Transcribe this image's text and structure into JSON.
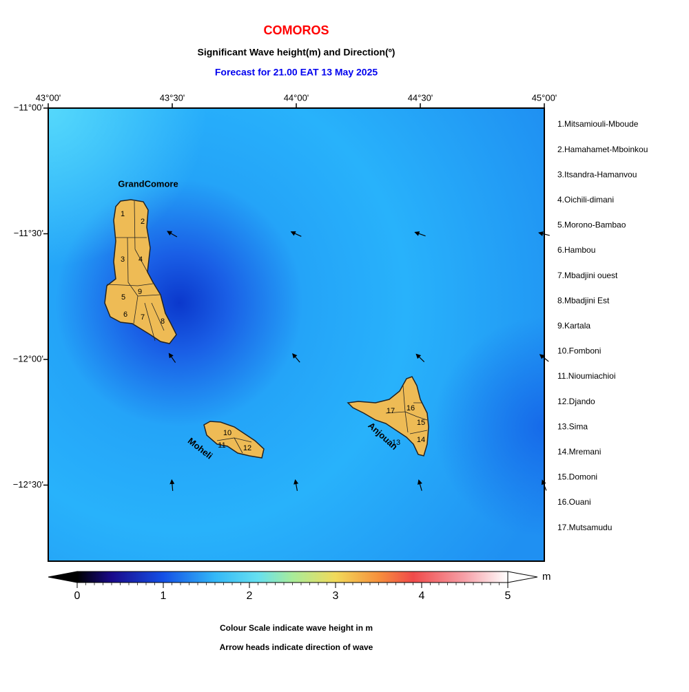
{
  "header": {
    "title": "COMOROS",
    "subtitle": "Significant Wave height(m) and Direction(º)",
    "forecast": "Forecast for  21.00 EAT 13 May 2025"
  },
  "map": {
    "lon_labels": [
      "43°00'",
      "43°30'",
      "44°00'",
      "44°30'",
      "45°00'"
    ],
    "lat_labels": [
      "−11°00'",
      "−11°30'",
      "−12°00'",
      "−12°30'"
    ],
    "islands": [
      "GrandComore",
      "Moheli",
      "Anjouan"
    ],
    "region_labels": [
      "1",
      "2",
      "3",
      "4",
      "5",
      "6",
      "7",
      "8",
      "9",
      "10",
      "11",
      "12",
      "13",
      "14",
      "15",
      "16",
      "17"
    ]
  },
  "legend": {
    "regions": [
      "1.Mitsamiouli-Mboude",
      "2.Hamahamet-Mboinkou",
      "3.Itsandra-Hamanvou",
      "4.Oichili-dimani",
      "5.Morono-Bambao",
      "6.Hambou",
      "7.Mbadjini ouest",
      "8.Mbadjini Est",
      "9.Kartala",
      "10.Fomboni",
      "11.Nioumiachioi",
      "12.Djando",
      "13.Sima",
      "14.Mremani",
      "15.Domoni",
      "16.Ouani",
      "17.Mutsamudu"
    ]
  },
  "colorbar": {
    "ticks": [
      0,
      1,
      2,
      3,
      4,
      5
    ],
    "unit": "m"
  },
  "notes": [
    "Colour Scale indicate wave height in m",
    "Arrow heads indicate direction of wave"
  ]
}
